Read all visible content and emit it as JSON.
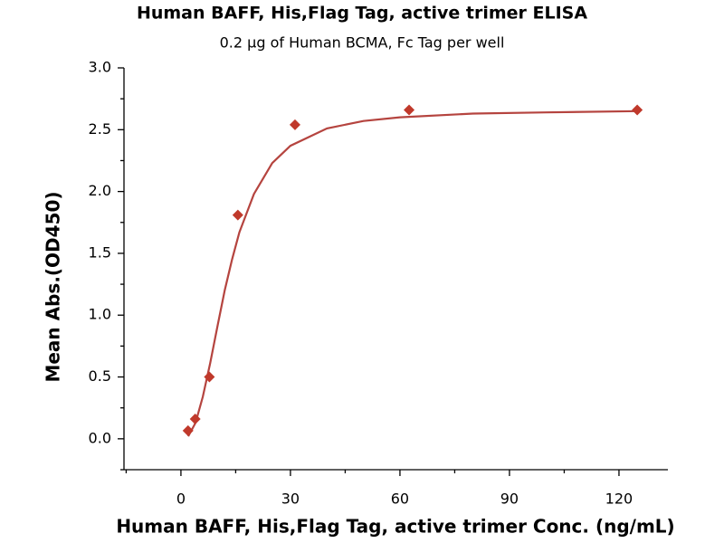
{
  "chart_data": {
    "type": "scatter",
    "title": "Human BAFF, His,Flag Tag, active trimer ELISA",
    "subtitle": "0.2 μg of Human BCMA, Fc Tag per well",
    "x_label": "Human BAFF, His,Flag Tag, active trimer Conc. (ng/mL)",
    "y_label": "Mean Abs.(OD450)",
    "xlim": [
      -15.6,
      133.4
    ],
    "ylim": [
      -0.25,
      3.0
    ],
    "xticks": [
      0,
      30,
      60,
      90,
      120
    ],
    "yticks": [
      {
        "value": 0,
        "label": "0.0"
      },
      0.5,
      {
        "value": 1,
        "label": "1.0"
      },
      1.5,
      {
        "value": 2,
        "label": "2.0"
      },
      2.5,
      {
        "value": 3,
        "label": "3.0"
      }
    ],
    "xticks_minor": [
      -15,
      15,
      45,
      75,
      105
    ],
    "yticks_minor": [
      -0.25,
      0.25,
      0.75,
      1.25,
      1.75,
      2.25,
      2.75
    ],
    "grid": false,
    "series": [
      {
        "color": "#c0392b",
        "x": [
          1.95,
          3.9,
          7.8,
          15.6,
          31.25,
          62.5,
          125
        ],
        "values": [
          0.066,
          0.16,
          0.5,
          1.81,
          2.54,
          2.66,
          2.66
        ]
      }
    ],
    "fit": {
      "color": "#b5443f",
      "x": [
        2,
        4,
        6,
        8,
        10,
        12,
        14,
        16,
        20,
        25,
        30,
        40,
        50,
        60,
        80,
        100,
        125
      ],
      "values": [
        0.02,
        0.13,
        0.34,
        0.61,
        0.91,
        1.2,
        1.45,
        1.67,
        1.98,
        2.23,
        2.37,
        2.51,
        2.57,
        2.6,
        2.63,
        2.64,
        2.65
      ]
    }
  }
}
